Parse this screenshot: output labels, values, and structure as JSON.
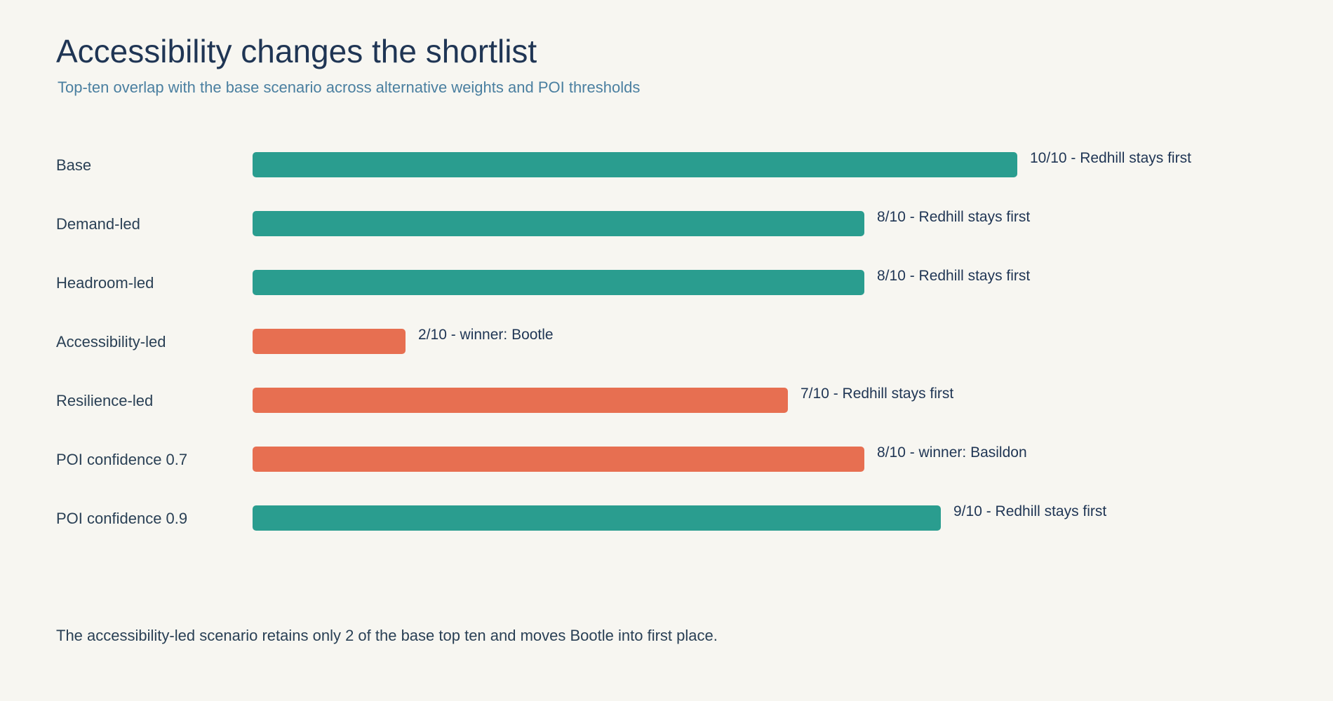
{
  "title": "Accessibility changes the shortlist",
  "subtitle": "Top-ten overlap with the base scenario across alternative weights and POI thresholds",
  "footnote": "The accessibility-led scenario retains only 2 of the base top ten and moves Bootle into first place.",
  "colors": {
    "background": "#f7f6f1",
    "retained_winner": "#2a9d8f",
    "changed": "#e76f51",
    "title": "#1f3554",
    "subtitle": "#4a7fa0"
  },
  "chart_data": {
    "type": "bar",
    "orientation": "horizontal",
    "xlim": [
      0,
      10
    ],
    "grid": false,
    "categories": [
      "Base",
      "Demand-led",
      "Headroom-led",
      "Accessibility-led",
      "Resilience-led",
      "POI confidence 0.7",
      "POI confidence 0.9"
    ],
    "values": [
      10,
      8,
      8,
      2,
      7,
      8,
      9
    ],
    "bar_colors": [
      "#2a9d8f",
      "#2a9d8f",
      "#2a9d8f",
      "#e76f51",
      "#e76f51",
      "#e76f51",
      "#2a9d8f"
    ],
    "data_labels": [
      "10/10 - Redhill stays first",
      "8/10 - Redhill stays first",
      "8/10 - Redhill stays first",
      "2/10 - winner: Bootle",
      "7/10 - Redhill stays first",
      "8/10 - winner: Basildon",
      "9/10 - Redhill stays first"
    ]
  }
}
